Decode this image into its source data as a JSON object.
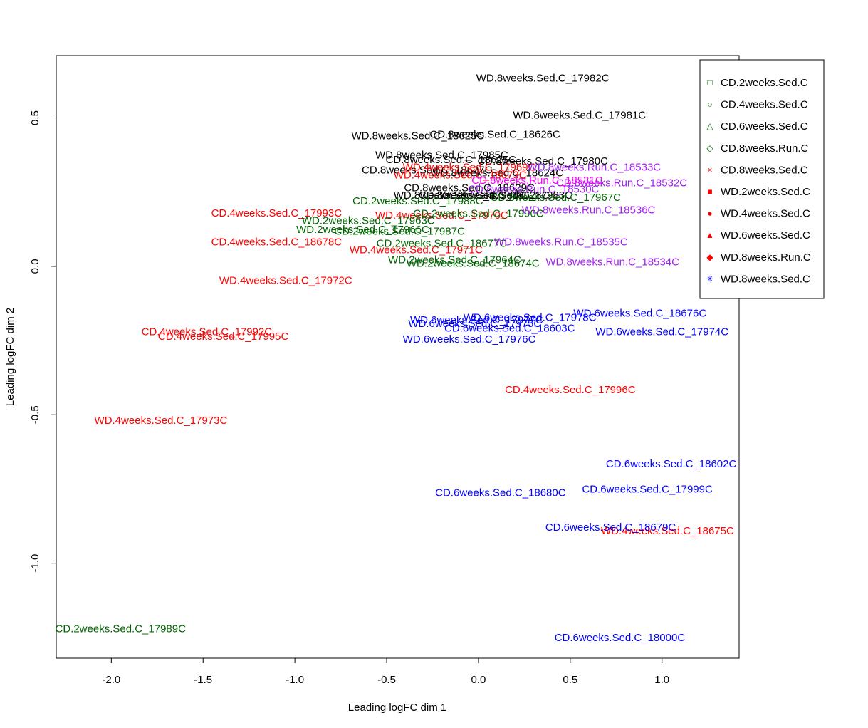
{
  "chart_data": {
    "type": "scatter",
    "title": "",
    "xlabel": "Leading logFC dim 1",
    "ylabel": "Leading logFC dim 2",
    "xlim": [
      -2.3,
      1.42
    ],
    "ylim": [
      -1.32,
      0.71
    ],
    "x_ticks": [
      -2.0,
      -1.5,
      -1.0,
      -0.5,
      0.0,
      0.5,
      1.0
    ],
    "x_tick_labels": [
      "-2.0",
      "-1.5",
      "-1.0",
      "-0.5",
      "0.0",
      "0.5",
      "1.0"
    ],
    "y_ticks": [
      -1.0,
      -0.5,
      0.0,
      0.5
    ],
    "y_tick_labels": [
      "-1.0",
      "-0.5",
      "0.0",
      "0.5"
    ],
    "grid": false,
    "legend_position": "top-right",
    "legend": [
      {
        "label": "CD.2weeks.Sed.C",
        "symbol": "□",
        "color": "#006400"
      },
      {
        "label": "CD.4weeks.Sed.C",
        "symbol": "○",
        "color": "#006400"
      },
      {
        "label": "CD.6weeks.Sed.C",
        "symbol": "△",
        "color": "#006400"
      },
      {
        "label": "CD.8weeks.Run.C",
        "symbol": "◇",
        "color": "#006400"
      },
      {
        "label": "CD.8weeks.Sed.C",
        "symbol": "×",
        "color": "#ff0000"
      },
      {
        "label": "WD.2weeks.Sed.C",
        "symbol": "■",
        "color": "#ff0000"
      },
      {
        "label": "WD.4weeks.Sed.C",
        "symbol": "●",
        "color": "#ff0000"
      },
      {
        "label": "WD.6weeks.Sed.C",
        "symbol": "▲",
        "color": "#ff0000"
      },
      {
        "label": "WD.8weeks.Run.C",
        "symbol": "◆",
        "color": "#ff0000"
      },
      {
        "label": "WD.8weeks.Sed.C",
        "symbol": "✳",
        "color": "#0000ff"
      }
    ],
    "colors": {
      "black": "#000000",
      "red": "#ff0000",
      "green": "#006400",
      "blue": "#0000ff",
      "purple": "#a020f0",
      "magenta": "#ff00ff"
    },
    "points": [
      {
        "label": "WD.8weeks.Sed.C_17982C",
        "x": 0.35,
        "y": 0.635,
        "color": "black"
      },
      {
        "label": "WD.8weeks.Sed.C_17981C",
        "x": 0.55,
        "y": 0.51,
        "color": "black"
      },
      {
        "label": "CD.8weeks.Sed.C_18626C",
        "x": 0.09,
        "y": 0.445,
        "color": "black"
      },
      {
        "label": "WD.8weeks.Sed.C_18625C",
        "x": -0.33,
        "y": 0.44,
        "color": "black"
      },
      {
        "label": "WD.8weeks.Sed.C_17985C",
        "x": -0.2,
        "y": 0.375,
        "color": "black"
      },
      {
        "label": "CD.8weeks.Sed.C_17980C",
        "x": 0.35,
        "y": 0.355,
        "color": "black"
      },
      {
        "label": "CD.8weeks.Sed.C_18625C",
        "x": -0.15,
        "y": 0.36,
        "color": "black"
      },
      {
        "label": "CD.8weeks.Sed.C_18627C",
        "x": -0.28,
        "y": 0.325,
        "color": "black"
      },
      {
        "label": "WD.8weeks.Sed.C_18624C",
        "x": 0.1,
        "y": 0.315,
        "color": "black"
      },
      {
        "label": "CD.8weeks.Sed.C_18629C",
        "x": -0.05,
        "y": 0.265,
        "color": "black"
      },
      {
        "label": "CD.8weeks.Sed.C_18628C",
        "x": 0.03,
        "y": 0.24,
        "color": "black"
      },
      {
        "label": "WD.8weeks.Sed.C_17983C",
        "x": 0.15,
        "y": 0.24,
        "color": "black"
      },
      {
        "label": "WD.8weeks.Sed.C_17984C",
        "x": -0.1,
        "y": 0.24,
        "color": "black"
      },
      {
        "label": "CD.8weeks.Sed.C_17967C",
        "x": 0.42,
        "y": 0.232,
        "color": "green"
      },
      {
        "label": "WD.4weeks.Sed.C_17969C",
        "x": -0.05,
        "y": 0.335,
        "color": "red"
      },
      {
        "label": "WD.4weeks.Sed.C_18673C",
        "x": -0.1,
        "y": 0.308,
        "color": "red"
      },
      {
        "label": "CD.4weeks.Sed.C_17993C",
        "x": -1.1,
        "y": 0.18,
        "color": "red"
      },
      {
        "label": "WD.4weeks.Sed.C_17970C",
        "x": -0.2,
        "y": 0.172,
        "color": "red"
      },
      {
        "label": "CD.4weeks.Sed.C_18678C",
        "x": -1.1,
        "y": 0.082,
        "color": "red"
      },
      {
        "label": "WD.4weeks.Sed.C_17971C",
        "x": -0.34,
        "y": 0.056,
        "color": "red"
      },
      {
        "label": "WD.4weeks.Sed.C_17972C",
        "x": -1.05,
        "y": -0.047,
        "color": "red"
      },
      {
        "label": "CD.4weeks.Sed.C_17992C",
        "x": -1.48,
        "y": -0.22,
        "color": "red"
      },
      {
        "label": "CD.4weeks.Sed.C_17995C",
        "x": -1.39,
        "y": -0.235,
        "color": "red"
      },
      {
        "label": "CD.4weeks.Sed.C_17996C",
        "x": 0.5,
        "y": -0.415,
        "color": "red"
      },
      {
        "label": "WD.4weeks.Sed.C_17973C",
        "x": -1.73,
        "y": -0.518,
        "color": "red"
      },
      {
        "label": "WD.4weeks.Sed.C_18675C",
        "x": 1.03,
        "y": -0.89,
        "color": "red"
      },
      {
        "label": "CD.2weeks.Sed.C_17988C",
        "x": -0.33,
        "y": 0.22,
        "color": "green"
      },
      {
        "label": "WD.2weeks.Sed.C_17963C",
        "x": -0.6,
        "y": 0.155,
        "color": "green"
      },
      {
        "label": "CD.2weeks.Sed.C_17990C",
        "x": 0.0,
        "y": 0.178,
        "color": "green"
      },
      {
        "label": "WD.2weeks.Sed.C_17966C",
        "x": -0.63,
        "y": 0.125,
        "color": "green"
      },
      {
        "label": "CD.2weeks.Sed.C_17987C",
        "x": -0.43,
        "y": 0.118,
        "color": "green"
      },
      {
        "label": "CD.2weeks.Sed.C_18677C",
        "x": -0.2,
        "y": 0.078,
        "color": "green"
      },
      {
        "label": "WD.2weeks.Sed.C_17964C",
        "x": -0.13,
        "y": 0.023,
        "color": "green"
      },
      {
        "label": "WD.2weeks.Sed.C_18674C",
        "x": -0.03,
        "y": 0.01,
        "color": "green"
      },
      {
        "label": "CD.2weeks.Sed.C_17989C",
        "x": -1.95,
        "y": -1.22,
        "color": "green"
      },
      {
        "label": "WD.8weeks.Run.C_18533C",
        "x": 0.63,
        "y": 0.335,
        "color": "purple"
      },
      {
        "label": "CD.8weeks.Run.C_18532C",
        "x": 0.78,
        "y": 0.282,
        "color": "purple"
      },
      {
        "label": "CD.8weeks.Run.C_18530C",
        "x": 0.3,
        "y": 0.26,
        "color": "purple"
      },
      {
        "label": "CD.8weeks.Run.C_18531C",
        "x": 0.32,
        "y": 0.29,
        "color": "magenta"
      },
      {
        "label": "WD.8weeks.Run.C_18536C",
        "x": 0.6,
        "y": 0.19,
        "color": "purple"
      },
      {
        "label": "WD.8weeks.Run.C_18535C",
        "x": 0.45,
        "y": 0.083,
        "color": "purple"
      },
      {
        "label": "WD.8weeks.Run.C_18534C",
        "x": 0.73,
        "y": 0.015,
        "color": "purple"
      },
      {
        "label": "WD.6weeks.Sed.C_18676C",
        "x": 0.88,
        "y": -0.158,
        "color": "blue"
      },
      {
        "label": "WD.6weeks.Sed.C_17978C",
        "x": 0.28,
        "y": -0.172,
        "color": "blue"
      },
      {
        "label": "WD.6weeks.Sed.C_17977C",
        "x": -0.01,
        "y": -0.18,
        "color": "blue"
      },
      {
        "label": "WD.6weeks.Sed.C_17975C",
        "x": -0.02,
        "y": -0.192,
        "color": "blue"
      },
      {
        "label": "CD.6weeks.Sed.C_18603C",
        "x": 0.17,
        "y": -0.208,
        "color": "blue"
      },
      {
        "label": "WD.6weeks.Sed.C_17974C",
        "x": 1.0,
        "y": -0.22,
        "color": "blue"
      },
      {
        "label": "WD.6weeks.Sed.C_17976C",
        "x": -0.05,
        "y": -0.245,
        "color": "blue"
      },
      {
        "label": "CD.6weeks.Sed.C_18602C",
        "x": 1.05,
        "y": -0.665,
        "color": "blue"
      },
      {
        "label": "CD.6weeks.Sed.C_18680C",
        "x": 0.12,
        "y": -0.762,
        "color": "blue"
      },
      {
        "label": "CD.6weeks.Sed.C_17999C",
        "x": 0.92,
        "y": -0.75,
        "color": "blue"
      },
      {
        "label": "CD.6weeks.Sed.C_18679C",
        "x": 0.72,
        "y": -0.878,
        "color": "blue"
      },
      {
        "label": "CD.6weeks.Sed.C_18000C",
        "x": 0.77,
        "y": -1.25,
        "color": "blue"
      }
    ]
  }
}
